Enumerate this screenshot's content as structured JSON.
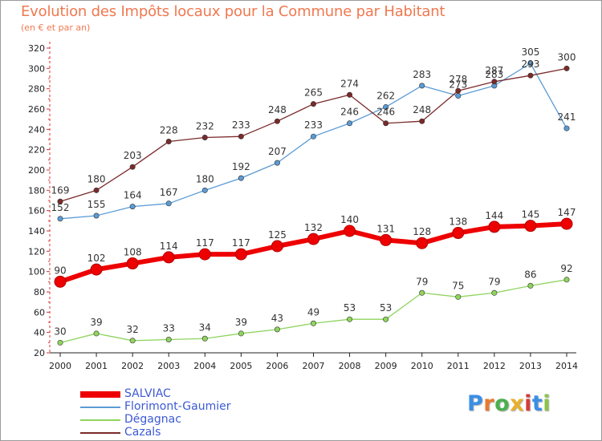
{
  "title": "Evolution des Impôts locaux pour la Commune par Habitant",
  "subtitle": "(en € et par an)",
  "logo": {
    "letters": [
      "P",
      "r",
      "o",
      "x",
      "i",
      "t",
      "i"
    ],
    "colors": [
      "#3a8ee6",
      "#e87a2c",
      "#4caf50",
      "#e8b02c",
      "#d43c3c",
      "#3a8ee6",
      "#8bc34a"
    ]
  },
  "chart_data": {
    "type": "line",
    "x": [
      2000,
      2001,
      2002,
      2003,
      2004,
      2005,
      2006,
      2007,
      2008,
      2009,
      2010,
      2011,
      2012,
      2013,
      2014
    ],
    "ylim": [
      20,
      320
    ],
    "yticks": [
      20,
      40,
      60,
      80,
      100,
      120,
      140,
      160,
      180,
      200,
      220,
      240,
      260,
      280,
      300,
      320
    ],
    "grid": false,
    "legend": "bottom-left",
    "series": [
      {
        "name": "SALVIAC",
        "color": "#ee0000",
        "values": [
          90,
          102,
          108,
          114,
          117,
          117,
          125,
          132,
          140,
          131,
          128,
          138,
          144,
          145,
          147
        ]
      },
      {
        "name": "Florimont-Gaumier",
        "color": "#5b9bd5",
        "values": [
          152,
          155,
          164,
          167,
          180,
          192,
          207,
          233,
          246,
          262,
          283,
          273,
          283,
          305,
          241
        ]
      },
      {
        "name": "Dégagnac",
        "color": "#8fd45e",
        "values": [
          30,
          39,
          32,
          33,
          34,
          39,
          43,
          49,
          53,
          53,
          79,
          75,
          79,
          86,
          92
        ]
      },
      {
        "name": "Cazals",
        "color": "#7a2a2a",
        "values": [
          169,
          180,
          203,
          228,
          232,
          233,
          248,
          265,
          274,
          246,
          248,
          278,
          287,
          293,
          300
        ]
      }
    ]
  }
}
